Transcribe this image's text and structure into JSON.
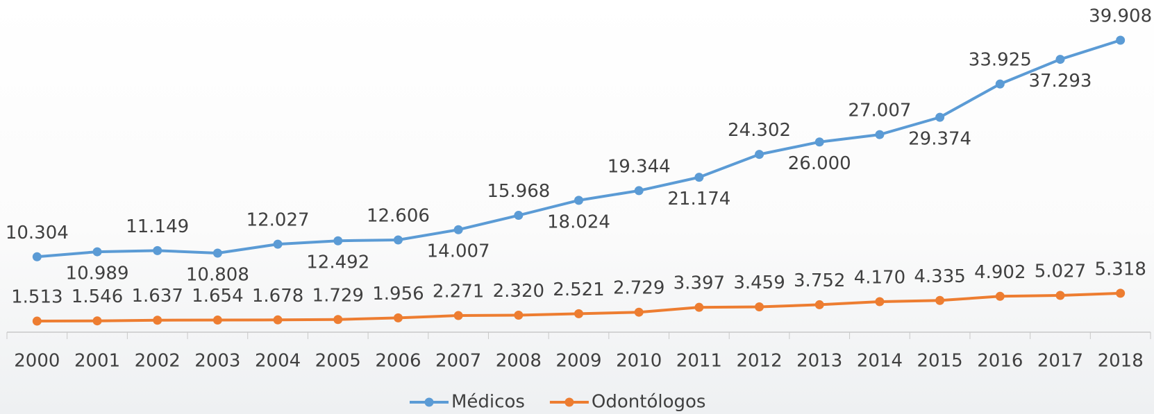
{
  "chart_data": {
    "type": "line",
    "categories": [
      "2000",
      "2001",
      "2002",
      "2003",
      "2004",
      "2005",
      "2006",
      "2007",
      "2008",
      "2009",
      "2010",
      "2011",
      "2012",
      "2013",
      "2014",
      "2015",
      "2016",
      "2017",
      "2018"
    ],
    "series": [
      {
        "name": "Médicos",
        "color": "#5b9bd5",
        "values": [
          10304,
          10989,
          11149,
          10808,
          12027,
          12492,
          12606,
          14007,
          15968,
          18024,
          19344,
          21174,
          24302,
          26000,
          27007,
          29374,
          33925,
          37293,
          39908
        ],
        "value_labels": [
          "10.304",
          "10.989",
          "11.149",
          "10.808",
          "12.027",
          "12.492",
          "12.606",
          "14.007",
          "15.968",
          "18.024",
          "19.344",
          "21.174",
          "24.302",
          "26.000",
          "27.007",
          "29.374",
          "33.925",
          "37.293",
          "39.908"
        ]
      },
      {
        "name": "Odontólogos",
        "color": "#ed7d31",
        "values": [
          1513,
          1546,
          1637,
          1654,
          1678,
          1729,
          1956,
          2271,
          2320,
          2521,
          2729,
          3397,
          3459,
          3752,
          4170,
          4335,
          4902,
          5027,
          5318
        ],
        "value_labels": [
          "1.513",
          "1.546",
          "1.637",
          "1.654",
          "1.678",
          "1.729",
          "1.956",
          "2.271",
          "2.320",
          "2.521",
          "2.729",
          "3.397",
          "3.459",
          "3.752",
          "4.170",
          "4.335",
          "4.902",
          "5.027",
          "5.318"
        ]
      }
    ],
    "legend": "bottom"
  }
}
